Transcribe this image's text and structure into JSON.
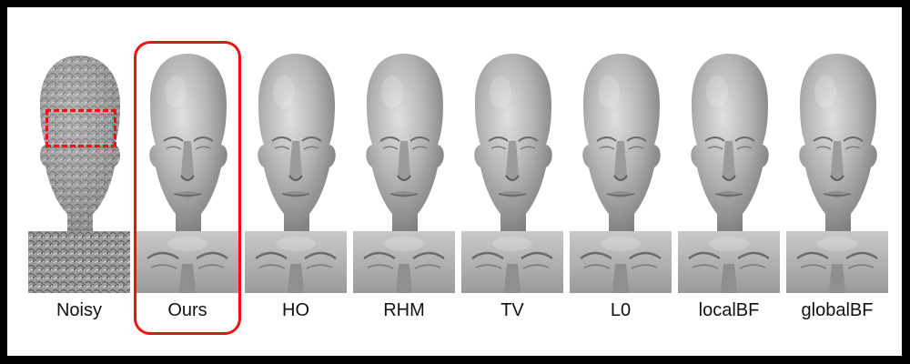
{
  "figure": {
    "methods": [
      {
        "id": "noisy",
        "label": "Noisy"
      },
      {
        "id": "ours",
        "label": "Ours"
      },
      {
        "id": "ho",
        "label": "HO"
      },
      {
        "id": "rhm",
        "label": "RHM"
      },
      {
        "id": "tv",
        "label": "TV"
      },
      {
        "id": "l0",
        "label": "L0"
      },
      {
        "id": "localbf",
        "label": "localBF"
      },
      {
        "id": "globalbf",
        "label": "globalBF"
      }
    ],
    "highlight_color": "#e11111",
    "mesh_color": "#a8a8a8"
  }
}
